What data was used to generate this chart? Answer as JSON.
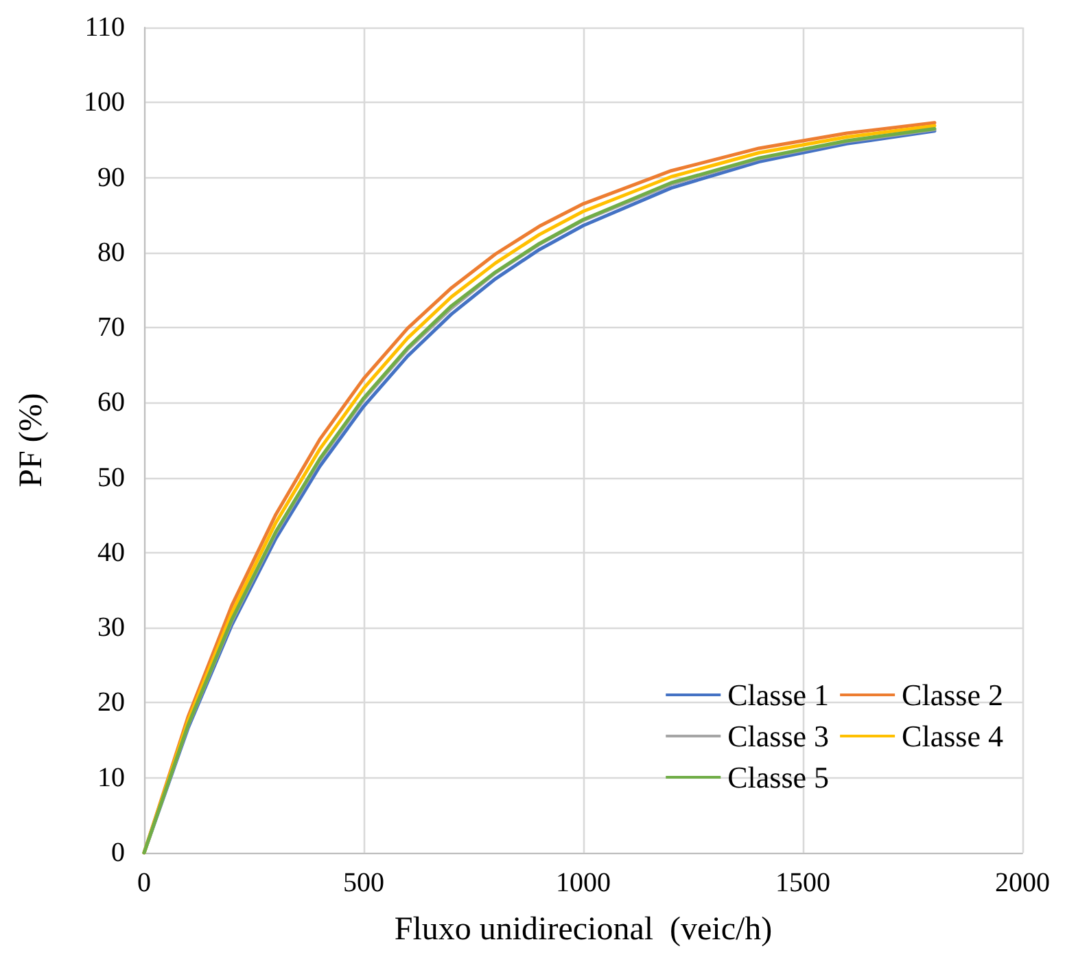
{
  "chart_data": {
    "type": "line",
    "xlabel": "Fluxo unidirecional  (veic/h)",
    "ylabel": "PF (%)",
    "x": [
      0,
      100,
      200,
      300,
      400,
      500,
      600,
      700,
      800,
      900,
      1000,
      1200,
      1400,
      1600,
      1800
    ],
    "xlim": [
      0,
      2000
    ],
    "xticks": [
      0,
      500,
      1000,
      1500,
      2000
    ],
    "ylim": [
      0,
      110
    ],
    "yticks": [
      0,
      10,
      20,
      30,
      40,
      50,
      60,
      70,
      80,
      90,
      100,
      110
    ],
    "grid": true,
    "legend": "bottom right",
    "marker": "none",
    "line_style": "solid",
    "series": [
      {
        "name": "Classe 1",
        "color": "#4472c4",
        "values": [
          0,
          16.6,
          30.4,
          41.9,
          51.5,
          59.5,
          66.2,
          71.8,
          76.5,
          80.4,
          83.6,
          88.6,
          92.1,
          94.5,
          96.2
        ]
      },
      {
        "name": "Classe 2",
        "color": "#ed7d31",
        "values": [
          0,
          18.1,
          33.0,
          45.1,
          55.1,
          63.2,
          69.9,
          75.3,
          79.8,
          83.5,
          86.5,
          90.9,
          93.9,
          95.9,
          97.3
        ]
      },
      {
        "name": "Classe 3",
        "color": "#a5a5a5",
        "values": [
          0,
          16.9,
          30.9,
          42.6,
          52.3,
          60.4,
          67.1,
          72.6,
          77.3,
          81.1,
          84.3,
          89.1,
          92.5,
          94.8,
          96.4
        ]
      },
      {
        "name": "Classe 4",
        "color": "#ffc000",
        "values": [
          0,
          17.6,
          32.0,
          44.0,
          53.8,
          61.9,
          68.6,
          74.1,
          78.6,
          82.4,
          85.5,
          90.1,
          93.3,
          95.4,
          96.9
        ]
      },
      {
        "name": "Classe 5",
        "color": "#70ad47",
        "values": [
          0,
          17.0,
          31.1,
          42.8,
          52.5,
          60.6,
          67.3,
          72.9,
          77.4,
          81.2,
          84.4,
          89.3,
          92.6,
          94.9,
          96.5
        ]
      }
    ]
  }
}
